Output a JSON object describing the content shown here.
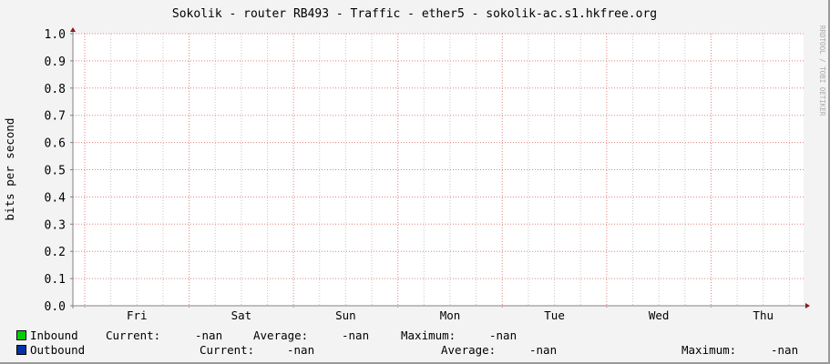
{
  "chart_data": {
    "type": "area",
    "title": "Sokolik - router RB493 - Traffic - ether5 - sokolik-ac.s1.hkfree.org",
    "ylabel": "bits per second",
    "xlabel": "",
    "watermark": "RRDTOOL / TOBI OETIKER",
    "ylim": [
      0,
      1.0
    ],
    "yticks": [
      "0.0",
      "0.1",
      "0.2",
      "0.3",
      "0.4",
      "0.5",
      "0.6",
      "0.7",
      "0.8",
      "0.9",
      "1.0"
    ],
    "xticks": [
      "Fri",
      "Sat",
      "Sun",
      "Mon",
      "Tue",
      "Wed",
      "Thu"
    ],
    "grid": true,
    "series": [
      {
        "name": "Inbound",
        "color": "#00cc00",
        "values": [],
        "current": "-nan",
        "average": "-nan",
        "maximum": "-nan"
      },
      {
        "name": "Outbound",
        "color": "#0033aa",
        "values": [],
        "current": "-nan",
        "average": "-nan",
        "maximum": "-nan"
      }
    ],
    "legend_placement": "bottom"
  },
  "legend": {
    "current_label": "Current:",
    "average_label": "Average:",
    "maximum_label": "Maximum:"
  },
  "colors": {
    "major_grid": "#e08080",
    "minor_grid": "#c8c8c8",
    "axis": "#808080",
    "arrow": "#8b1a1a"
  }
}
